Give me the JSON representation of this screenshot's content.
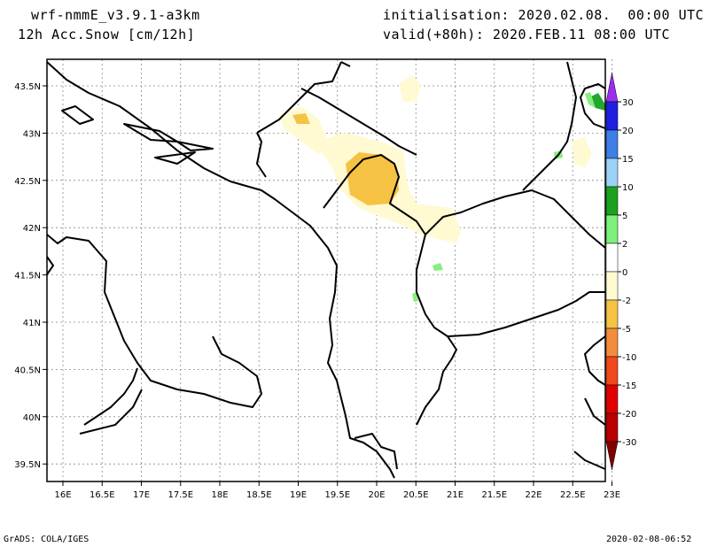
{
  "header": {
    "model": "wrf-nmmE_v3.9.1-a3km",
    "variable": "12h Acc.Snow [cm/12h]",
    "initialisation": "initialisation: 2020.02.08.  00:00 UTC",
    "valid": "valid(+80h): 2020.FEB.11 08:00 UTC"
  },
  "footer": {
    "left": "GrADS: COLA/IGES",
    "right": "2020-02-08-06:52"
  },
  "map": {
    "lat_labels": [
      "43.5N",
      "43N",
      "42.5N",
      "42N",
      "41.5N",
      "41N",
      "40.5N",
      "40N",
      "39.5N"
    ],
    "lon_labels": [
      "16E",
      "16.5E",
      "17E",
      "17.5E",
      "18E",
      "18.5E",
      "19E",
      "19.5E",
      "20E",
      "20.5E",
      "21E",
      "21.5E",
      "22E",
      "22.5E",
      "23E"
    ],
    "colors": {
      "neg2": "#fffad2",
      "neg5": "#f6c244",
      "neg10": "#f3a64b",
      "green_light": "#86ee7e",
      "green_dark": "#22a62c",
      "coast": "#000000"
    }
  },
  "colorbar": {
    "labels": [
      "30",
      "20",
      "15",
      "10",
      "5",
      "2",
      "0",
      "-2",
      "-5",
      "-10",
      "-15",
      "-20",
      "-30"
    ],
    "colors": [
      "#9a2df2",
      "#1f1fe0",
      "#3d7ee8",
      "#9cd2f6",
      "#1ca11e",
      "#7ef07c",
      "#ffffff",
      "#fffad2",
      "#f6c244",
      "#f38d3d",
      "#f2481d",
      "#e00000",
      "#b80000",
      "#800000"
    ]
  }
}
